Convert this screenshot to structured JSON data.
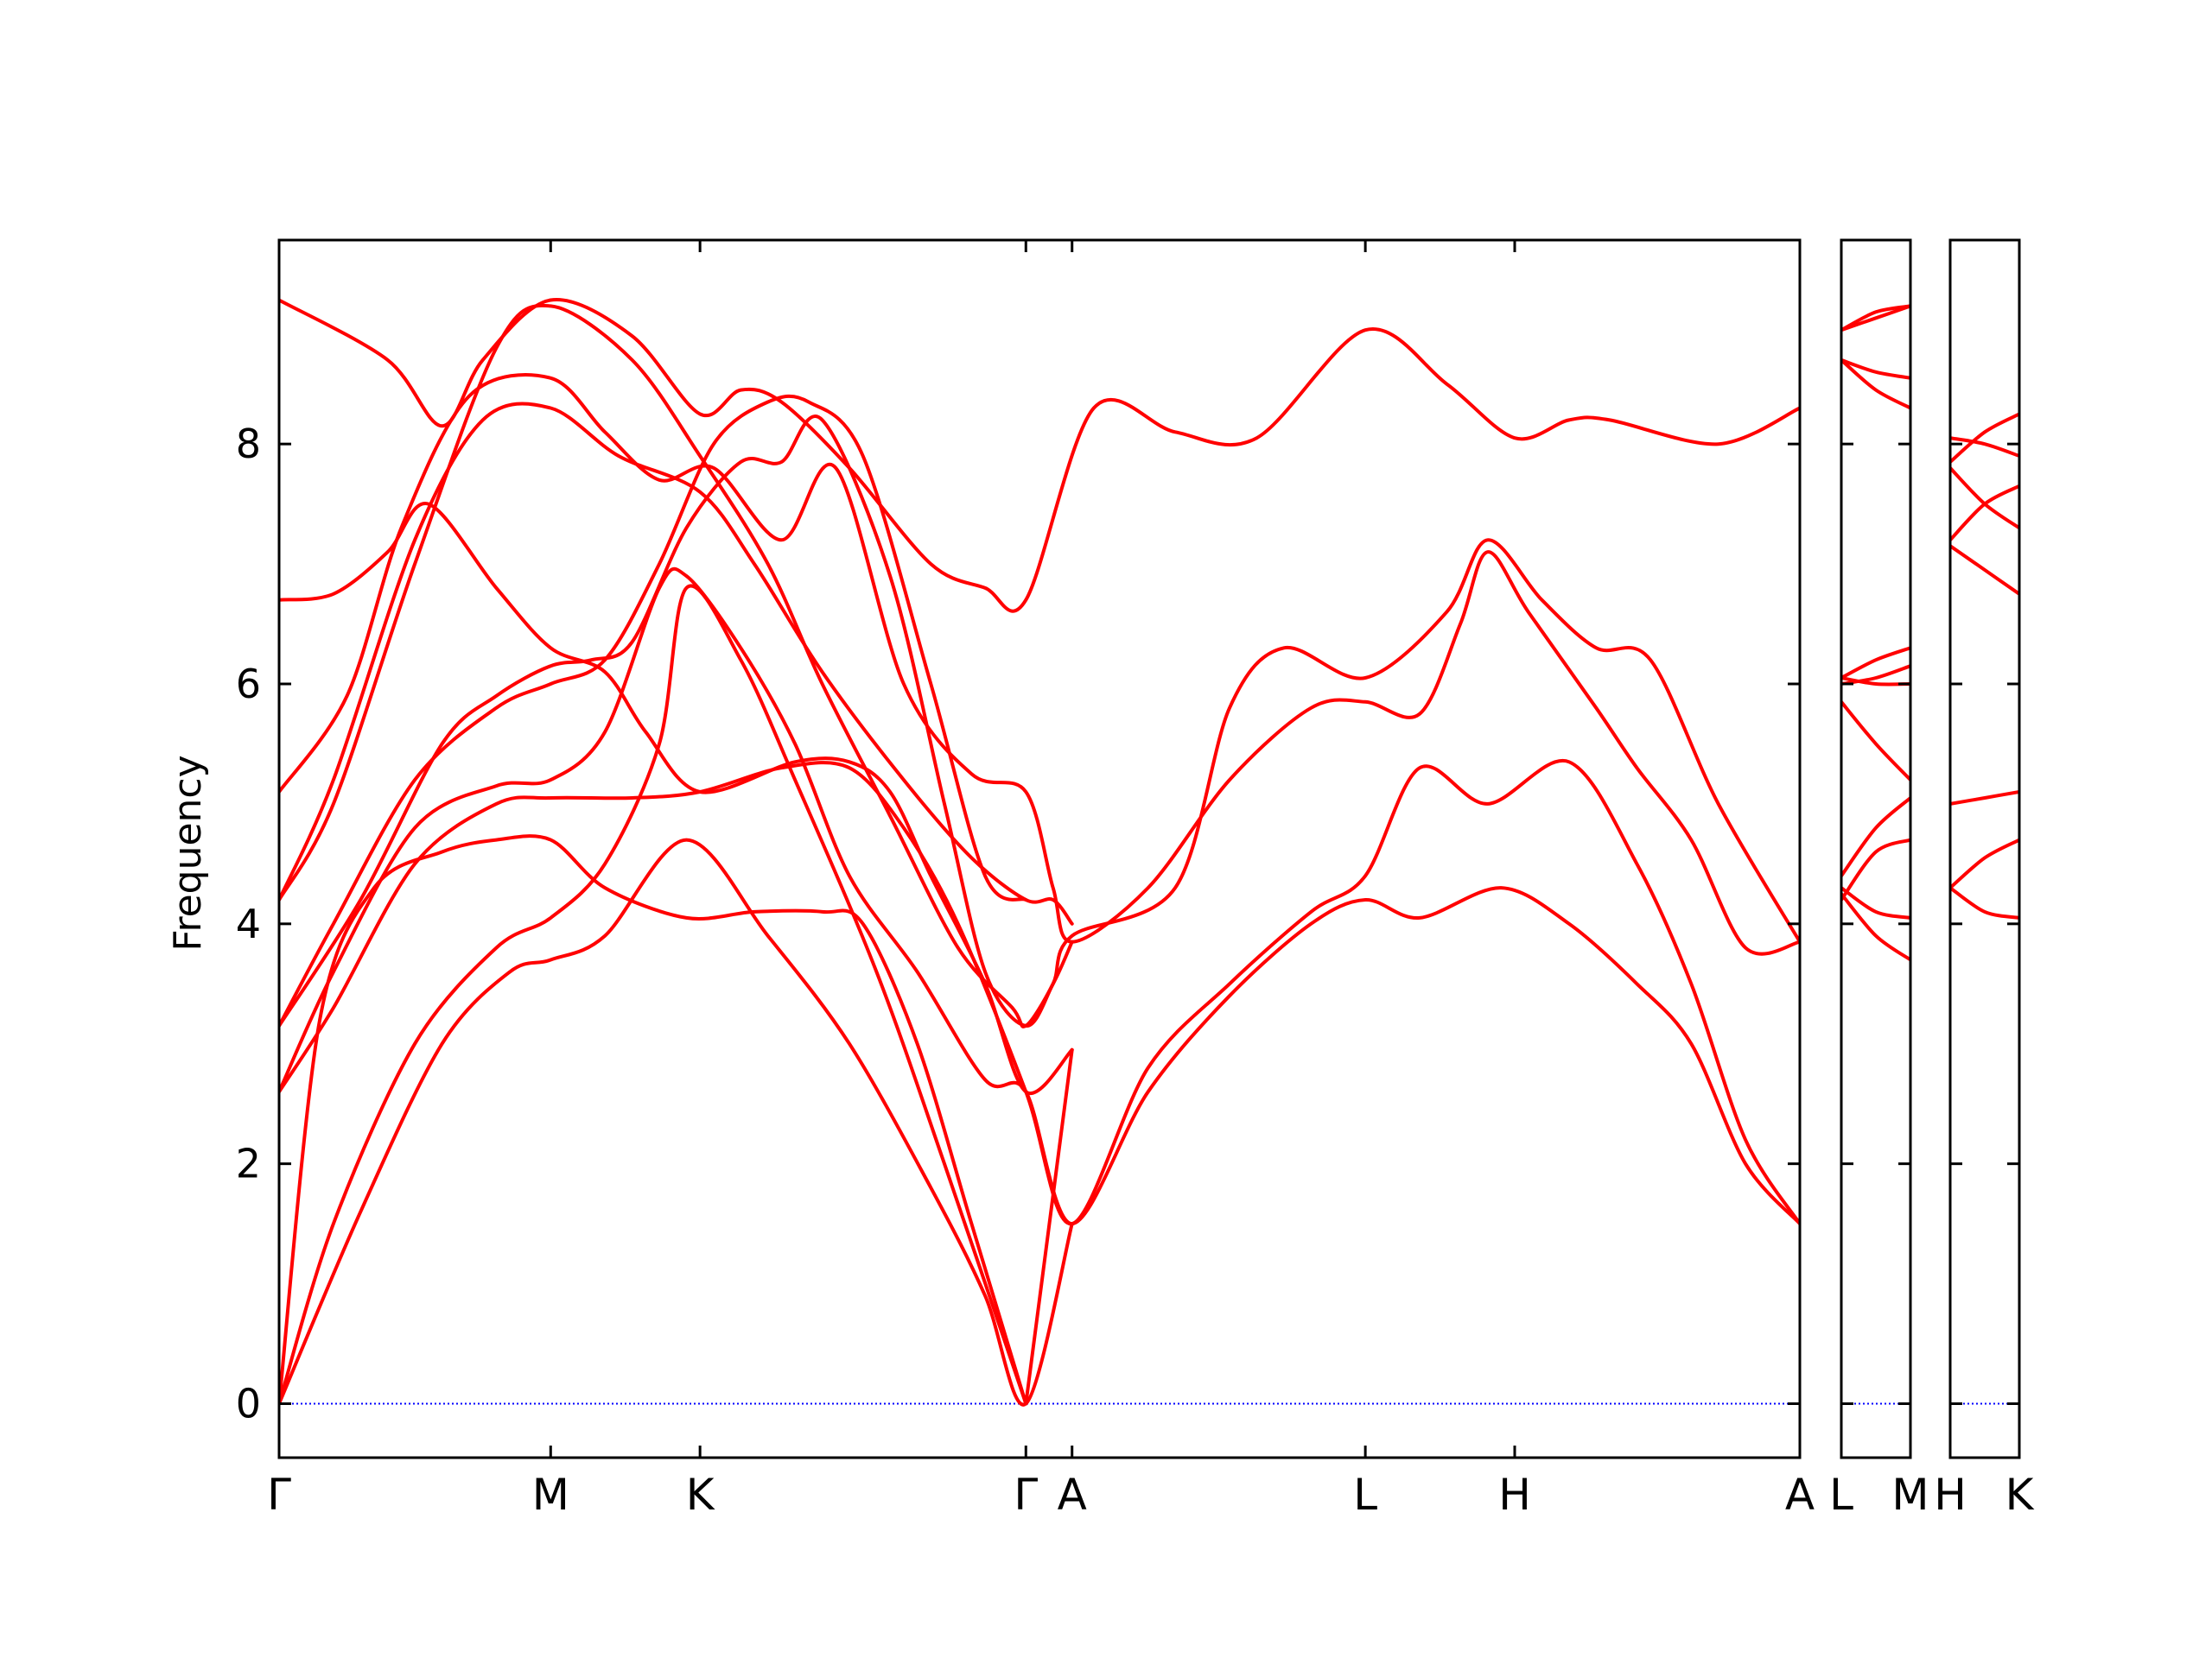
{
  "chart_data": {
    "type": "line",
    "title": "",
    "ylabel": "Frequency",
    "xlabel": "",
    "ylim": [
      -0.45,
      9.7
    ],
    "y_ticks": [
      0,
      2,
      4,
      6,
      8
    ],
    "grid": false,
    "legend": "none",
    "colors": {
      "bands": "#ff0000",
      "zero_line": "#0000ff",
      "axes": "#000000"
    },
    "panels": [
      {
        "name": "panel-1",
        "path": [
          "Γ",
          "M",
          "K",
          "Γ",
          "A",
          "L",
          "H",
          "A"
        ]
      },
      {
        "name": "panel-2",
        "path": [
          "L",
          "M"
        ]
      },
      {
        "name": "panel-3",
        "path": [
          "H",
          "K"
        ]
      }
    ],
    "x_tick_labels": [
      "Γ",
      "M",
      "K",
      "Γ",
      "A",
      "L",
      "H",
      "A",
      "L",
      "M",
      "H",
      "K"
    ],
    "series": [
      {
        "panel": 0,
        "points": [
          [
            0,
            9.2
          ],
          [
            0.4,
            8.7
          ],
          [
            0.6,
            8.15
          ],
          [
            0.75,
            8.7
          ],
          [
            1.0,
            9.2
          ],
          [
            1.3,
            8.9
          ],
          [
            1.55,
            8.25
          ],
          [
            1.7,
            8.45
          ],
          [
            1.85,
            8.35
          ],
          [
            2.1,
            7.8
          ],
          [
            2.4,
            7.0
          ],
          [
            2.6,
            6.8
          ],
          [
            2.75,
            6.7
          ],
          [
            3.0,
            8.3
          ],
          [
            3.3,
            8.1
          ],
          [
            3.6,
            8.05
          ],
          [
            4.0,
            8.95
          ],
          [
            4.3,
            8.5
          ],
          [
            4.55,
            8.05
          ],
          [
            4.75,
            8.2
          ],
          [
            4.9,
            8.2
          ],
          [
            5.3,
            8.0
          ],
          [
            5.6,
            8.3
          ]
        ]
      },
      {
        "panel": 0,
        "points": [
          [
            0,
            6.7
          ],
          [
            0.2,
            6.75
          ],
          [
            0.4,
            7.1
          ],
          [
            0.55,
            7.5
          ],
          [
            0.8,
            6.8
          ],
          [
            1.0,
            6.3
          ],
          [
            1.2,
            6.1
          ],
          [
            1.35,
            5.6
          ],
          [
            1.55,
            5.1
          ],
          [
            1.9,
            5.35
          ],
          [
            2.1,
            5.35
          ],
          [
            2.25,
            5.1
          ],
          [
            2.4,
            4.4
          ],
          [
            2.6,
            3.5
          ],
          [
            2.75,
            2.6
          ],
          [
            2.92,
            2.95
          ]
        ]
      },
      {
        "panel": 0,
        "points": [
          [
            0,
            5.1
          ],
          [
            0.25,
            5.9
          ],
          [
            0.45,
            7.3
          ],
          [
            0.7,
            8.4
          ],
          [
            1.0,
            8.55
          ],
          [
            1.2,
            8.1
          ],
          [
            1.4,
            7.7
          ],
          [
            1.6,
            7.8
          ],
          [
            1.85,
            7.2
          ],
          [
            2.05,
            7.8
          ],
          [
            2.3,
            6.0
          ],
          [
            2.55,
            5.25
          ],
          [
            2.75,
            5.1
          ],
          [
            2.85,
            4.3
          ],
          [
            2.92,
            3.85
          ],
          [
            3.2,
            4.3
          ],
          [
            3.5,
            5.2
          ],
          [
            3.8,
            5.8
          ],
          [
            4.0,
            5.85
          ],
          [
            4.2,
            5.75
          ],
          [
            4.35,
            6.5
          ],
          [
            4.45,
            7.1
          ],
          [
            4.6,
            6.6
          ],
          [
            4.85,
            5.8
          ],
          [
            5.0,
            5.3
          ],
          [
            5.2,
            4.7
          ],
          [
            5.4,
            3.8
          ],
          [
            5.6,
            3.85
          ]
        ]
      },
      {
        "panel": 0,
        "points": [
          [
            0,
            4.2
          ],
          [
            0.2,
            5.2
          ],
          [
            0.5,
            7.2
          ],
          [
            0.75,
            8.2
          ],
          [
            1.0,
            8.3
          ],
          [
            1.25,
            7.9
          ],
          [
            1.55,
            7.6
          ],
          [
            1.75,
            7.0
          ],
          [
            2.0,
            6.1
          ],
          [
            2.3,
            5.2
          ],
          [
            2.55,
            4.55
          ],
          [
            2.75,
            4.2
          ],
          [
            2.85,
            4.2
          ],
          [
            2.92,
            4.0
          ]
        ]
      },
      {
        "panel": 0,
        "points": [
          [
            0,
            4.2
          ],
          [
            0.2,
            5.0
          ],
          [
            0.5,
            7.0
          ],
          [
            0.8,
            8.8
          ],
          [
            1.0,
            9.15
          ],
          [
            1.3,
            8.7
          ],
          [
            1.55,
            7.9
          ],
          [
            1.8,
            7.0
          ],
          [
            2.0,
            6.0
          ],
          [
            2.25,
            4.9
          ],
          [
            2.5,
            3.8
          ],
          [
            2.7,
            3.3
          ],
          [
            2.75,
            3.15
          ],
          [
            2.85,
            3.5
          ],
          [
            2.92,
            3.9
          ],
          [
            3.3,
            4.3
          ],
          [
            3.5,
            5.8
          ],
          [
            3.7,
            6.3
          ],
          [
            4.0,
            6.05
          ],
          [
            4.3,
            6.6
          ],
          [
            4.45,
            7.2
          ],
          [
            4.65,
            6.7
          ],
          [
            4.85,
            6.3
          ],
          [
            5.05,
            6.2
          ],
          [
            5.3,
            5.0
          ],
          [
            5.6,
            3.85
          ]
        ]
      },
      {
        "panel": 0,
        "points": [
          [
            0,
            3.15
          ],
          [
            0.3,
            4.2
          ],
          [
            0.6,
            5.5
          ],
          [
            0.8,
            5.9
          ],
          [
            1.0,
            6.15
          ],
          [
            1.15,
            6.2
          ],
          [
            1.3,
            6.35
          ],
          [
            1.5,
            7.3
          ],
          [
            1.7,
            7.85
          ],
          [
            1.85,
            7.85
          ],
          [
            2.0,
            8.2
          ],
          [
            2.25,
            6.9
          ],
          [
            2.45,
            5.0
          ],
          [
            2.6,
            3.6
          ],
          [
            2.75,
            3.15
          ],
          [
            2.85,
            3.5
          ],
          [
            2.92,
            3.85
          ]
        ]
      },
      {
        "panel": 0,
        "points": [
          [
            0,
            3.15
          ],
          [
            0.2,
            4.0
          ],
          [
            0.5,
            5.2
          ],
          [
            0.8,
            5.8
          ],
          [
            1.0,
            6.0
          ],
          [
            1.2,
            6.2
          ],
          [
            1.4,
            7.0
          ],
          [
            1.6,
            8.0
          ],
          [
            1.8,
            8.35
          ],
          [
            1.95,
            8.35
          ],
          [
            2.15,
            7.9
          ],
          [
            2.4,
            6.0
          ],
          [
            2.6,
            4.4
          ],
          [
            2.75,
            4.2
          ]
        ]
      },
      {
        "panel": 0,
        "points": [
          [
            0,
            2.6
          ],
          [
            0.2,
            3.6
          ],
          [
            0.5,
            4.8
          ],
          [
            0.8,
            5.15
          ],
          [
            1.0,
            5.2
          ],
          [
            1.2,
            5.6
          ],
          [
            1.4,
            6.8
          ],
          [
            1.5,
            6.9
          ],
          [
            1.7,
            6.3
          ],
          [
            1.9,
            5.5
          ],
          [
            2.1,
            4.4
          ],
          [
            2.35,
            3.6
          ],
          [
            2.6,
            2.7
          ],
          [
            2.75,
            2.6
          ],
          [
            2.92,
            1.5
          ],
          [
            3.2,
            2.6
          ],
          [
            3.5,
            3.4
          ],
          [
            3.8,
            4.0
          ],
          [
            4.0,
            4.2
          ],
          [
            4.2,
            4.05
          ],
          [
            4.5,
            4.3
          ],
          [
            4.75,
            4.0
          ],
          [
            5.0,
            3.5
          ],
          [
            5.2,
            3.0
          ],
          [
            5.4,
            2.0
          ],
          [
            5.6,
            1.5
          ]
        ]
      },
      {
        "panel": 0,
        "points": [
          [
            0,
            2.6
          ],
          [
            0.2,
            3.3
          ],
          [
            0.5,
            4.5
          ],
          [
            0.8,
            5.0
          ],
          [
            1.0,
            5.05
          ],
          [
            1.3,
            5.05
          ],
          [
            1.55,
            5.1
          ],
          [
            1.85,
            5.3
          ],
          [
            2.1,
            5.3
          ],
          [
            2.3,
            4.8
          ],
          [
            2.5,
            4.0
          ],
          [
            2.75,
            2.6
          ],
          [
            2.92,
            1.5
          ],
          [
            3.2,
            2.8
          ],
          [
            3.5,
            3.5
          ],
          [
            3.8,
            4.1
          ],
          [
            4.0,
            4.4
          ],
          [
            4.2,
            5.3
          ],
          [
            4.45,
            5.0
          ],
          [
            4.75,
            5.35
          ],
          [
            5.0,
            4.5
          ],
          [
            5.2,
            3.5
          ],
          [
            5.4,
            2.2
          ],
          [
            5.6,
            1.5
          ]
        ]
      },
      {
        "panel": 0,
        "points": [
          [
            0,
            0
          ],
          [
            0.15,
            3.2
          ],
          [
            0.35,
            4.3
          ],
          [
            0.6,
            4.6
          ],
          [
            0.8,
            4.7
          ],
          [
            1.0,
            4.7
          ],
          [
            1.2,
            4.3
          ],
          [
            1.5,
            4.05
          ],
          [
            1.75,
            4.1
          ],
          [
            2.0,
            4.1
          ],
          [
            2.15,
            4.0
          ],
          [
            2.35,
            3.0
          ],
          [
            2.55,
            1.5
          ],
          [
            2.75,
            0
          ]
        ]
      },
      {
        "panel": 0,
        "points": [
          [
            0,
            0
          ],
          [
            0.2,
            1.5
          ],
          [
            0.5,
            3.0
          ],
          [
            0.8,
            3.8
          ],
          [
            1.0,
            4.05
          ],
          [
            1.2,
            4.5
          ],
          [
            1.4,
            5.5
          ],
          [
            1.5,
            6.8
          ],
          [
            1.7,
            6.2
          ],
          [
            1.9,
            5.2
          ],
          [
            2.2,
            3.6
          ],
          [
            2.45,
            2.0
          ],
          [
            2.75,
            0
          ]
        ]
      },
      {
        "panel": 0,
        "points": [
          [
            0,
            0
          ],
          [
            0.3,
            1.6
          ],
          [
            0.6,
            3.0
          ],
          [
            0.85,
            3.6
          ],
          [
            1.0,
            3.7
          ],
          [
            1.2,
            3.9
          ],
          [
            1.5,
            4.7
          ],
          [
            1.8,
            3.9
          ],
          [
            2.1,
            3.0
          ],
          [
            2.4,
            1.8
          ],
          [
            2.6,
            0.9
          ],
          [
            2.75,
            0
          ],
          [
            2.92,
            1.5
          ]
        ]
      },
      {
        "panel": 0,
        "points": [
          [
            2.75,
            0
          ],
          [
            2.92,
            2.95
          ]
        ]
      },
      {
        "panel": 1,
        "points": [
          [
            0,
            8.95
          ],
          [
            0.5,
            9.1
          ],
          [
            1,
            9.15
          ]
        ]
      },
      {
        "panel": 1,
        "points": [
          [
            0,
            8.95
          ],
          [
            0.5,
            9.05
          ],
          [
            1,
            9.15
          ]
        ]
      },
      {
        "panel": 1,
        "points": [
          [
            0,
            8.7
          ],
          [
            0.5,
            8.6
          ],
          [
            1,
            8.55
          ]
        ]
      },
      {
        "panel": 1,
        "points": [
          [
            0,
            8.7
          ],
          [
            0.5,
            8.45
          ],
          [
            1,
            8.3
          ]
        ]
      },
      {
        "panel": 1,
        "points": [
          [
            0,
            6.05
          ],
          [
            0.5,
            6.2
          ],
          [
            1,
            6.3
          ]
        ]
      },
      {
        "panel": 1,
        "points": [
          [
            0,
            6.0
          ],
          [
            0.5,
            6.05
          ],
          [
            1,
            6.15
          ]
        ]
      },
      {
        "panel": 1,
        "points": [
          [
            0,
            6.05
          ],
          [
            0.5,
            6.0
          ],
          [
            1,
            6.0
          ]
        ]
      },
      {
        "panel": 1,
        "points": [
          [
            0,
            5.85
          ],
          [
            0.5,
            5.5
          ],
          [
            1,
            5.2
          ]
        ]
      },
      {
        "panel": 1,
        "points": [
          [
            0,
            4.4
          ],
          [
            0.5,
            4.8
          ],
          [
            1,
            5.05
          ]
        ]
      },
      {
        "panel": 1,
        "points": [
          [
            0,
            4.2
          ],
          [
            0.5,
            4.6
          ],
          [
            1,
            4.7
          ]
        ]
      },
      {
        "panel": 1,
        "points": [
          [
            0,
            4.3
          ],
          [
            0.5,
            4.1
          ],
          [
            1,
            4.05
          ]
        ]
      },
      {
        "panel": 1,
        "points": [
          [
            0,
            4.25
          ],
          [
            0.5,
            3.9
          ],
          [
            1,
            3.7
          ]
        ]
      },
      {
        "panel": 2,
        "points": [
          [
            0,
            8.05
          ],
          [
            0.5,
            8.0
          ],
          [
            1,
            7.9
          ]
        ]
      },
      {
        "panel": 2,
        "points": [
          [
            0,
            7.85
          ],
          [
            0.5,
            8.1
          ],
          [
            1,
            8.25
          ]
        ]
      },
      {
        "panel": 2,
        "points": [
          [
            0,
            7.8
          ],
          [
            0.5,
            7.5
          ],
          [
            1,
            7.3
          ]
        ]
      },
      {
        "panel": 2,
        "points": [
          [
            0,
            7.2
          ],
          [
            0.5,
            7.5
          ],
          [
            1,
            7.65
          ]
        ]
      },
      {
        "panel": 2,
        "points": [
          [
            0,
            7.15
          ],
          [
            0.5,
            6.95
          ],
          [
            1,
            6.75
          ]
        ]
      },
      {
        "panel": 2,
        "points": [
          [
            0,
            5.0
          ],
          [
            0.5,
            5.05
          ],
          [
            1,
            5.1
          ]
        ]
      },
      {
        "panel": 2,
        "points": [
          [
            0,
            4.3
          ],
          [
            0.5,
            4.55
          ],
          [
            1,
            4.7
          ]
        ]
      },
      {
        "panel": 2,
        "points": [
          [
            0,
            4.3
          ],
          [
            0.5,
            4.1
          ],
          [
            1,
            4.05
          ]
        ]
      }
    ]
  }
}
